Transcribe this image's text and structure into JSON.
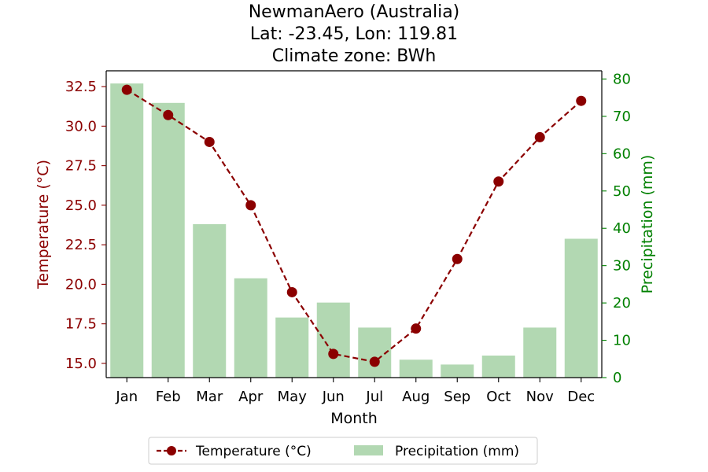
{
  "chart_data": {
    "type": "bar",
    "title_lines": [
      "NewmanAero (Australia)",
      "Lat: -23.45, Lon: 119.81",
      "Climate zone: BWh"
    ],
    "xlabel": "Month",
    "categories": [
      "Jan",
      "Feb",
      "Mar",
      "Apr",
      "May",
      "Jun",
      "Jul",
      "Aug",
      "Sep",
      "Oct",
      "Nov",
      "Dec"
    ],
    "series": [
      {
        "name": "Temperature (°C)",
        "kind": "line",
        "axis": "left",
        "values": [
          32.3,
          30.7,
          29.0,
          25.0,
          19.5,
          15.6,
          15.1,
          17.2,
          21.6,
          26.5,
          29.3,
          31.6
        ]
      },
      {
        "name": "Precipitation (mm)",
        "kind": "bar",
        "axis": "right",
        "values": [
          78.8,
          73.6,
          41.1,
          26.6,
          16.1,
          20.1,
          13.4,
          4.8,
          3.5,
          5.9,
          13.4,
          37.2
        ]
      }
    ],
    "y_left": {
      "label": "Temperature (°C)",
      "range": [
        14.1,
        33.5
      ],
      "ticks": [
        "15.0",
        "17.5",
        "20.0",
        "22.5",
        "25.0",
        "27.5",
        "30.0",
        "32.5"
      ],
      "tick_values": [
        15.0,
        17.5,
        20.0,
        22.5,
        25.0,
        27.5,
        30.0,
        32.5
      ]
    },
    "y_right": {
      "label": "Precipitation (mm)",
      "range": [
        0,
        82.2
      ],
      "ticks": [
        "0",
        "10",
        "20",
        "30",
        "40",
        "50",
        "60",
        "70",
        "80"
      ],
      "tick_values": [
        0,
        10,
        20,
        30,
        40,
        50,
        60,
        70,
        80
      ]
    },
    "legend": {
      "placement": "bottom-center",
      "items": [
        "Temperature (°C)",
        "Precipitation (mm)"
      ]
    },
    "grid": false
  },
  "colors": {
    "temperature": "#8b0000",
    "precipitation_bar": "#b2d8b2",
    "right_axis": "#008000",
    "frame": "#000000"
  }
}
